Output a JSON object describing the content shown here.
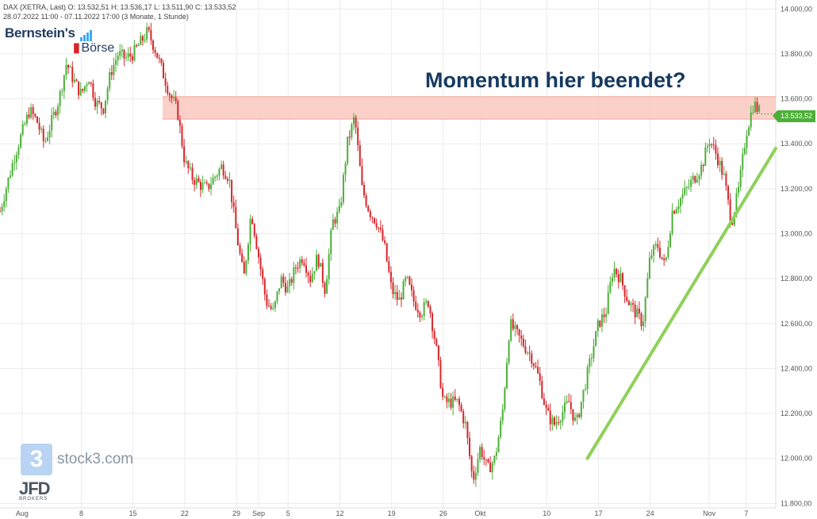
{
  "header": {
    "symbol_line": "DAX (XETRA, Last)  O: 13.532,51  H: 13.536,17  L: 13.511,90  C: 13.533,52",
    "range_line": "28.07.2022 11:00 - 07.11.2022 17:00   (3 Monate, 1 Stunde)"
  },
  "logos": {
    "bernstein_line1": "Bernstein's",
    "bernstein_line2": "Börse",
    "stock3_text": "stock3.com",
    "stock3_glyph": "3",
    "jfd_text": "JFD",
    "jfd_sub": "BROKERS"
  },
  "annotation": "Momentum hier beendet?",
  "last_price_label": "13.533,52",
  "colors": {
    "up": "#4caf38",
    "down": "#d7262c",
    "zone_fill": "#f9c8c0",
    "trendline": "#8ed158",
    "grid": "#ececec",
    "axis_text": "#555555"
  },
  "chart_data": {
    "type": "candlestick",
    "title": "DAX (XETRA, Last)",
    "timeframe": "1 Stunde",
    "ylim": [
      11780,
      14040
    ],
    "y_ticks": [
      "11.800,00",
      "12.000,00",
      "12.200,00",
      "12.400,00",
      "12.600,00",
      "12.800,00",
      "13.000,00",
      "13.200,00",
      "13.400,00",
      "13.600,00",
      "13.800,00",
      "14.000,00"
    ],
    "y_tick_values": [
      11800,
      12000,
      12200,
      12400,
      12600,
      12800,
      13000,
      13200,
      13400,
      13600,
      13800,
      14000
    ],
    "x_ticks": [
      {
        "label": "Aug",
        "day": 0
      },
      {
        "label": "8",
        "day": 8
      },
      {
        "label": "15",
        "day": 15
      },
      {
        "label": "22",
        "day": 22
      },
      {
        "label": "29",
        "day": 29
      },
      {
        "label": "Sep",
        "day": 32
      },
      {
        "label": "5",
        "day": 36
      },
      {
        "label": "12",
        "day": 43
      },
      {
        "label": "19",
        "day": 50
      },
      {
        "label": "26",
        "day": 57
      },
      {
        "label": "Okt",
        "day": 62
      },
      {
        "label": "10",
        "day": 71
      },
      {
        "label": "17",
        "day": 78
      },
      {
        "label": "24",
        "day": 85
      },
      {
        "label": "Nov",
        "day": 93
      },
      {
        "label": "7",
        "day": 98
      }
    ],
    "x_range_days": [
      -3,
      102
    ],
    "resistance_zone": {
      "from": 13510,
      "to": 13610,
      "start_day": 19
    },
    "trendline": [
      {
        "day": 76.5,
        "value": 12000
      },
      {
        "day": 102,
        "value": 13380
      }
    ],
    "closes_path": [
      {
        "day": -3,
        "value": 13100
      },
      {
        "day": -1,
        "value": 13350
      },
      {
        "day": 1,
        "value": 13550
      },
      {
        "day": 2,
        "value": 13500
      },
      {
        "day": 3,
        "value": 13400
      },
      {
        "day": 5,
        "value": 13600
      },
      {
        "day": 6,
        "value": 13760
      },
      {
        "day": 7,
        "value": 13680
      },
      {
        "day": 8,
        "value": 13620
      },
      {
        "day": 9,
        "value": 13700
      },
      {
        "day": 10,
        "value": 13580
      },
      {
        "day": 11,
        "value": 13560
      },
      {
        "day": 12,
        "value": 13720
      },
      {
        "day": 13,
        "value": 13800
      },
      {
        "day": 14,
        "value": 13780
      },
      {
        "day": 15,
        "value": 13800
      },
      {
        "day": 16,
        "value": 13850
      },
      {
        "day": 17,
        "value": 13900
      },
      {
        "day": 18,
        "value": 13820
      },
      {
        "day": 19,
        "value": 13720
      },
      {
        "day": 20,
        "value": 13620
      },
      {
        "day": 21,
        "value": 13550
      },
      {
        "day": 22,
        "value": 13320
      },
      {
        "day": 23,
        "value": 13250
      },
      {
        "day": 24,
        "value": 13220
      },
      {
        "day": 25,
        "value": 13200
      },
      {
        "day": 26,
        "value": 13250
      },
      {
        "day": 27,
        "value": 13300
      },
      {
        "day": 28,
        "value": 13250
      },
      {
        "day": 29,
        "value": 13000
      },
      {
        "day": 30,
        "value": 12800
      },
      {
        "day": 31,
        "value": 13100
      },
      {
        "day": 32,
        "value": 12900
      },
      {
        "day": 33,
        "value": 12700
      },
      {
        "day": 34,
        "value": 12650
      },
      {
        "day": 35,
        "value": 12800
      },
      {
        "day": 36,
        "value": 12750
      },
      {
        "day": 37,
        "value": 12850
      },
      {
        "day": 38,
        "value": 12900
      },
      {
        "day": 39,
        "value": 12800
      },
      {
        "day": 40,
        "value": 12900
      },
      {
        "day": 41,
        "value": 12750
      },
      {
        "day": 42,
        "value": 13050
      },
      {
        "day": 43,
        "value": 13100
      },
      {
        "day": 44,
        "value": 13400
      },
      {
        "day": 45,
        "value": 13520
      },
      {
        "day": 46,
        "value": 13200
      },
      {
        "day": 47,
        "value": 13100
      },
      {
        "day": 48,
        "value": 13050
      },
      {
        "day": 49,
        "value": 12950
      },
      {
        "day": 50,
        "value": 12750
      },
      {
        "day": 51,
        "value": 12700
      },
      {
        "day": 52,
        "value": 12800
      },
      {
        "day": 53,
        "value": 12700
      },
      {
        "day": 54,
        "value": 12650
      },
      {
        "day": 55,
        "value": 12700
      },
      {
        "day": 56,
        "value": 12500
      },
      {
        "day": 57,
        "value": 12250
      },
      {
        "day": 58,
        "value": 12250
      },
      {
        "day": 59,
        "value": 12250
      },
      {
        "day": 60,
        "value": 12150
      },
      {
        "day": 61,
        "value": 11900
      },
      {
        "day": 62,
        "value": 12050
      },
      {
        "day": 63,
        "value": 11950
      },
      {
        "day": 64,
        "value": 12000
      },
      {
        "day": 65,
        "value": 12200
      },
      {
        "day": 66,
        "value": 12600
      },
      {
        "day": 67,
        "value": 12550
      },
      {
        "day": 68,
        "value": 12500
      },
      {
        "day": 69,
        "value": 12450
      },
      {
        "day": 70,
        "value": 12350
      },
      {
        "day": 71,
        "value": 12200
      },
      {
        "day": 72,
        "value": 12150
      },
      {
        "day": 73,
        "value": 12200
      },
      {
        "day": 74,
        "value": 12250
      },
      {
        "day": 75,
        "value": 12150
      },
      {
        "day": 76,
        "value": 12300
      },
      {
        "day": 77,
        "value": 12450
      },
      {
        "day": 78,
        "value": 12600
      },
      {
        "day": 79,
        "value": 12650
      },
      {
        "day": 80,
        "value": 12850
      },
      {
        "day": 81,
        "value": 12800
      },
      {
        "day": 82,
        "value": 12700
      },
      {
        "day": 83,
        "value": 12650
      },
      {
        "day": 84,
        "value": 12600
      },
      {
        "day": 85,
        "value": 12900
      },
      {
        "day": 86,
        "value": 12950
      },
      {
        "day": 87,
        "value": 12850
      },
      {
        "day": 88,
        "value": 13100
      },
      {
        "day": 89,
        "value": 13150
      },
      {
        "day": 90,
        "value": 13200
      },
      {
        "day": 91,
        "value": 13250
      },
      {
        "day": 92,
        "value": 13300
      },
      {
        "day": 93,
        "value": 13420
      },
      {
        "day": 94,
        "value": 13350
      },
      {
        "day": 95,
        "value": 13250
      },
      {
        "day": 96,
        "value": 13050
      },
      {
        "day": 97,
        "value": 13200
      },
      {
        "day": 98,
        "value": 13450
      },
      {
        "day": 99,
        "value": 13580
      },
      {
        "day": 100,
        "value": 13533
      }
    ]
  }
}
